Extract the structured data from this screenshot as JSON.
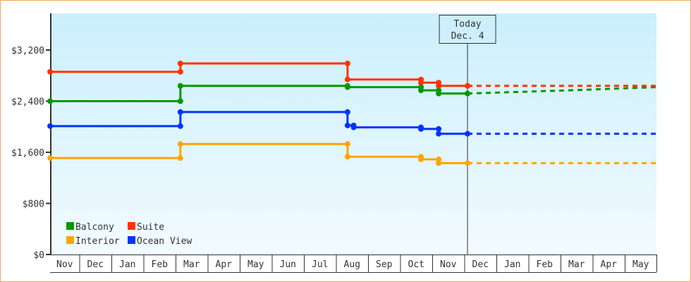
{
  "chart_data": {
    "type": "line",
    "title": "",
    "xlabel": "",
    "ylabel": "",
    "ylim": [
      0,
      3800
    ],
    "yticks": [
      0,
      800,
      1600,
      2400,
      3200
    ],
    "ytick_labels": [
      "$0",
      "$800",
      "$1,600",
      "$2,400",
      "$3,200"
    ],
    "x_unit": "months since start of first Nov",
    "xlim": [
      0,
      19
    ],
    "categories": [
      "Nov",
      "Dec",
      "Jan",
      "Feb",
      "Mar",
      "Apr",
      "May",
      "Jun",
      "Jul",
      "Aug",
      "Sep",
      "Oct",
      "Nov",
      "Dec",
      "Jan",
      "Feb",
      "Mar",
      "Apr",
      "May"
    ],
    "today": {
      "label_line1": "Today",
      "label_line2": "Dec. 4",
      "x": 13.1
    },
    "legend": {
      "position": "bottom-left",
      "entries": [
        "Balcony",
        "Suite",
        "Interior",
        "Ocean View"
      ]
    },
    "series": [
      {
        "name": "Balcony",
        "color": "#009900",
        "points": [
          [
            0.09,
            2400
          ],
          [
            4.15,
            2400
          ],
          [
            4.15,
            2640
          ],
          [
            9.36,
            2640
          ],
          [
            9.36,
            2620
          ],
          [
            11.65,
            2620
          ],
          [
            11.65,
            2570
          ],
          [
            12.2,
            2570
          ],
          [
            12.2,
            2520
          ],
          [
            13.1,
            2520
          ]
        ],
        "projection": [
          [
            13.1,
            2520
          ],
          [
            16.3,
            2570
          ],
          [
            19,
            2620
          ]
        ]
      },
      {
        "name": "Suite",
        "color": "#ff3300",
        "points": [
          [
            0.09,
            2860
          ],
          [
            4.15,
            2860
          ],
          [
            4.15,
            2990
          ],
          [
            9.36,
            2990
          ],
          [
            9.36,
            2740
          ],
          [
            11.65,
            2740
          ],
          [
            11.65,
            2690
          ],
          [
            12.2,
            2690
          ],
          [
            12.2,
            2640
          ],
          [
            13.1,
            2640
          ]
        ],
        "projection": [
          [
            13.1,
            2640
          ],
          [
            19,
            2640
          ]
        ]
      },
      {
        "name": "Interior",
        "color": "#ffa500",
        "points": [
          [
            0.09,
            1510
          ],
          [
            4.15,
            1510
          ],
          [
            4.15,
            1730
          ],
          [
            9.36,
            1730
          ],
          [
            9.36,
            1530
          ],
          [
            11.65,
            1530
          ],
          [
            11.65,
            1490
          ],
          [
            12.2,
            1490
          ],
          [
            12.2,
            1430
          ],
          [
            13.1,
            1430
          ]
        ],
        "projection": [
          [
            13.1,
            1430
          ],
          [
            19,
            1430
          ]
        ]
      },
      {
        "name": "Ocean View",
        "color": "#0033ff",
        "points": [
          [
            0.09,
            2010
          ],
          [
            4.15,
            2010
          ],
          [
            4.15,
            2230
          ],
          [
            9.36,
            2230
          ],
          [
            9.36,
            2020
          ],
          [
            9.55,
            2020
          ],
          [
            9.55,
            1990
          ],
          [
            11.65,
            1990
          ],
          [
            11.65,
            1965
          ],
          [
            12.2,
            1965
          ],
          [
            12.2,
            1890
          ],
          [
            13.1,
            1890
          ]
        ],
        "projection": [
          [
            13.1,
            1890
          ],
          [
            19,
            1890
          ]
        ]
      }
    ]
  }
}
